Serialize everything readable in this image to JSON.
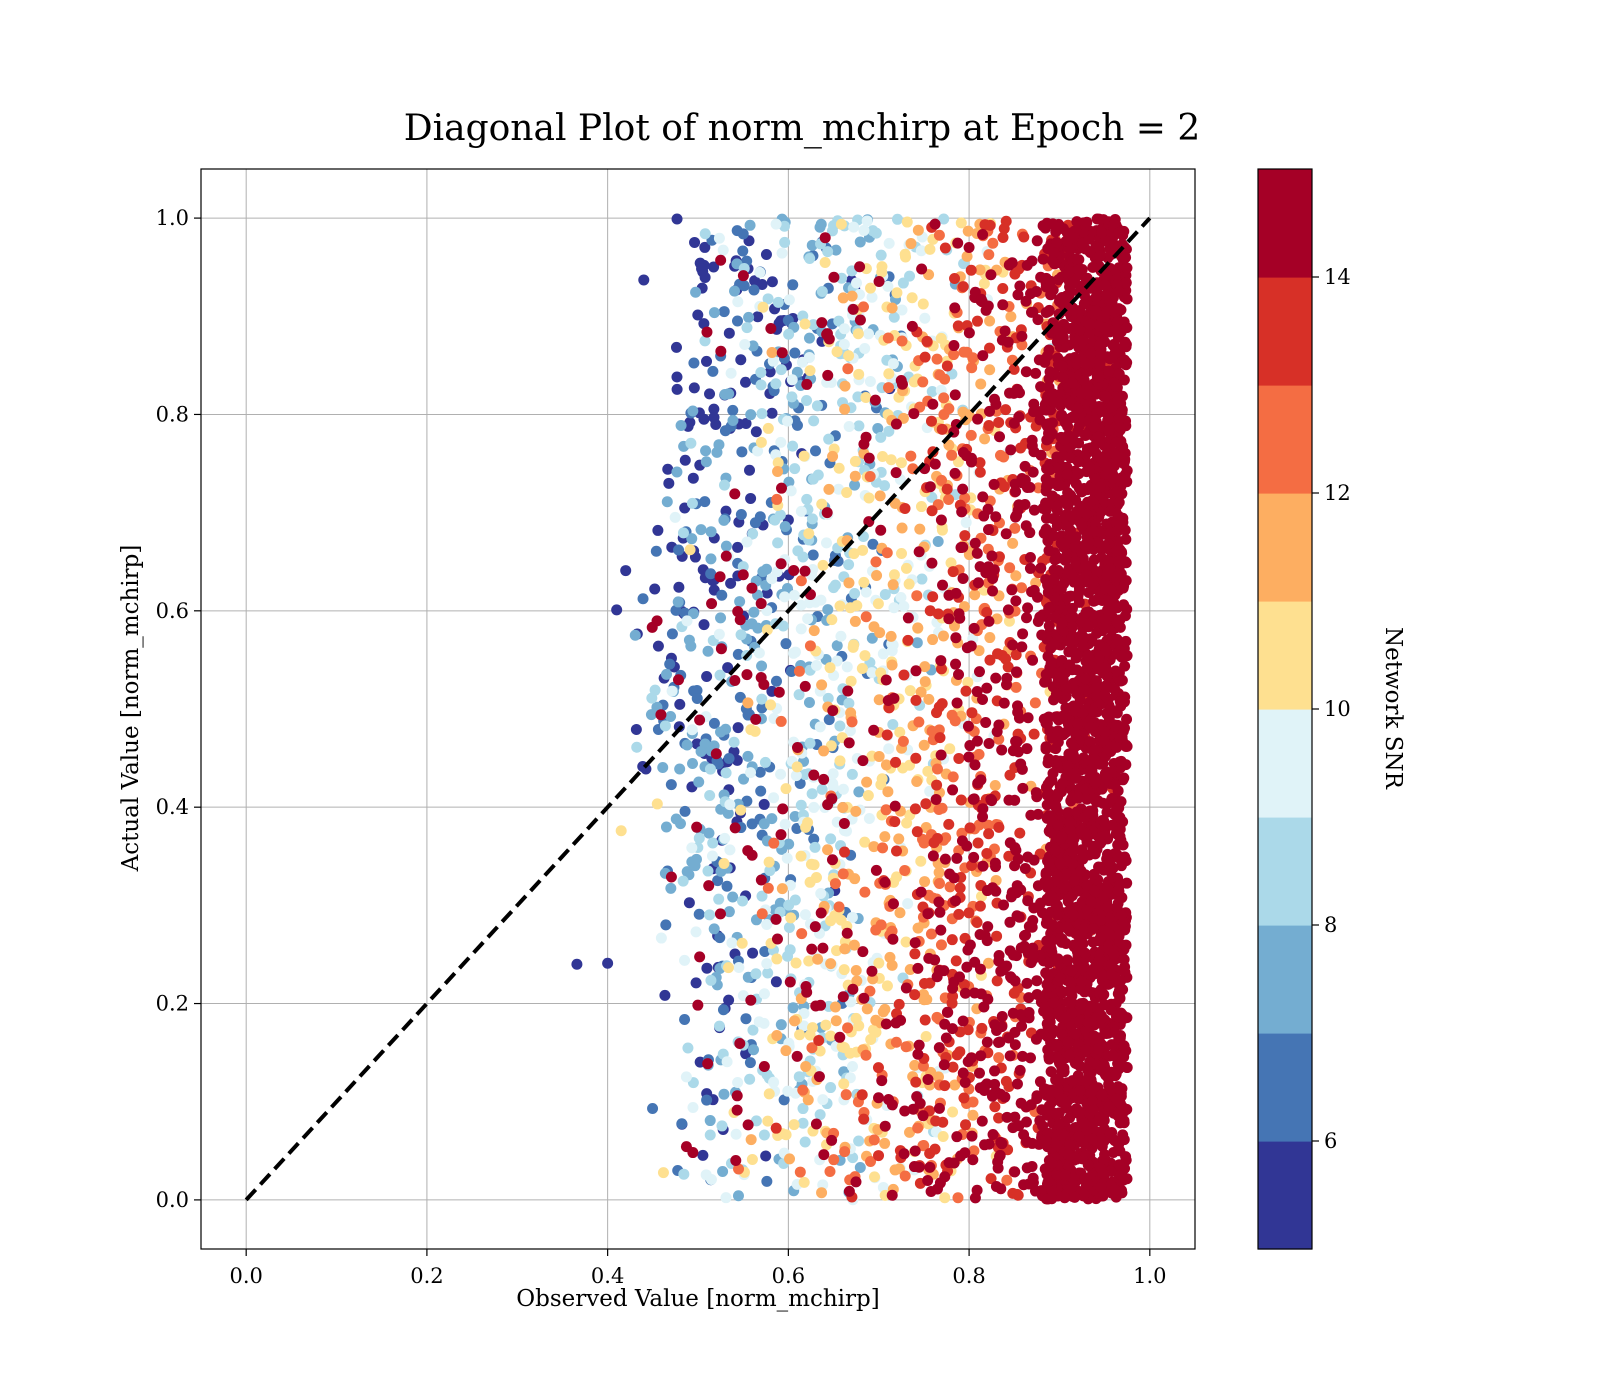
{
  "chart_data": {
    "type": "scatter",
    "title": "Diagonal Plot of norm_mchirp at Epoch = 2",
    "xlabel": "Observed Value [norm_mchirp]",
    "ylabel": "Actual Value [norm_mchirp]",
    "xlim": [
      -0.05,
      1.05
    ],
    "ylim": [
      -0.05,
      1.05
    ],
    "x_ticks": [
      "0.0",
      "0.2",
      "0.4",
      "0.6",
      "0.8",
      "1.0"
    ],
    "y_ticks": [
      "0.0",
      "0.2",
      "0.4",
      "0.6",
      "0.8",
      "1.0"
    ],
    "grid": true,
    "reference_line": {
      "style": "dashed",
      "color": "#000000",
      "from": [
        0.0,
        0.0
      ],
      "to": [
        1.0,
        1.0
      ]
    },
    "colorbar": {
      "label": "Network SNR",
      "range": [
        5,
        15
      ],
      "ticks": [
        "6",
        "8",
        "10",
        "12",
        "14"
      ],
      "tick_values": [
        6,
        8,
        10,
        12,
        14
      ],
      "colors": [
        "#313695",
        "#4575b4",
        "#74add1",
        "#abd9e9",
        "#e0f3f8",
        "#fee090",
        "#fdae61",
        "#f46d43",
        "#d73027",
        "#a50026"
      ]
    },
    "point_cloud": {
      "x_range": [
        0.37,
        0.975
      ],
      "y_range": [
        0.0,
        1.0
      ],
      "trend": "higher Network SNR at larger observed values; dense SNR≥14 band near observed 0.9–0.97",
      "isolated_points": [
        [
          0.366,
          0.24
        ],
        [
          0.4,
          0.241
        ],
        [
          0.415,
          0.376
        ],
        [
          0.41,
          0.601
        ],
        [
          0.42,
          0.641
        ],
        [
          0.44,
          0.937
        ]
      ]
    }
  }
}
